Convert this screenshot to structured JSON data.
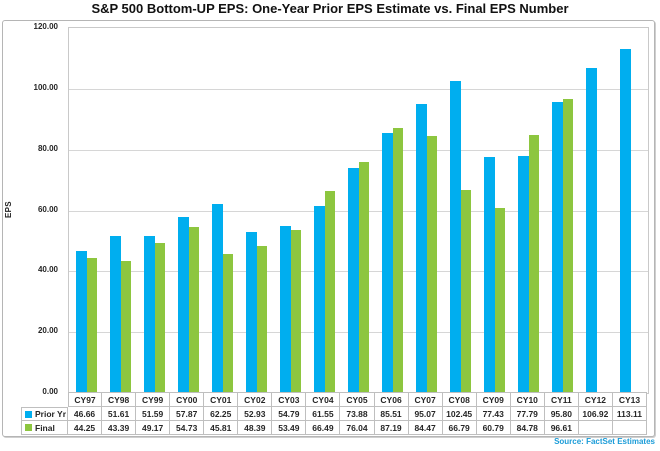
{
  "title": "S&P 500 Bottom-UP EPS: One-Year Prior EPS Estimate vs. Final EPS Number",
  "source_note": "Source: FactSet Estimates",
  "colors": {
    "prior_yr": "#00AEEF",
    "final": "#8DC63F",
    "gridline": "#d6d6d6",
    "table_border": "#bfbfbf",
    "source_text": "#1b9cd8"
  },
  "chart_data": {
    "type": "bar",
    "title": "S&P 500 Bottom-UP EPS: One-Year Prior EPS Estimate vs. Final EPS Number",
    "xlabel": "",
    "ylabel": "EPS",
    "ylim": [
      0,
      120
    ],
    "ytick_step": 20,
    "ytick_labels": [
      "0.00",
      "20.00",
      "40.00",
      "60.00",
      "80.00",
      "100.00",
      "120.00"
    ],
    "grid": true,
    "legend_position": "data-table-left",
    "categories": [
      "CY97",
      "CY98",
      "CY99",
      "CY00",
      "CY01",
      "CY02",
      "CY03",
      "CY04",
      "CY05",
      "CY06",
      "CY07",
      "CY08",
      "CY09",
      "CY10",
      "CY11",
      "CY12",
      "CY13"
    ],
    "series": [
      {
        "name": "Prior Yr",
        "color": "#00AEEF",
        "values": [
          46.66,
          51.61,
          51.59,
          57.87,
          62.25,
          52.93,
          54.79,
          61.55,
          73.88,
          85.51,
          95.07,
          102.45,
          77.43,
          77.79,
          95.8,
          106.92,
          113.11
        ]
      },
      {
        "name": "Final",
        "color": "#8DC63F",
        "values": [
          44.25,
          43.39,
          49.17,
          54.73,
          45.81,
          48.39,
          53.49,
          66.49,
          76.04,
          87.19,
          84.47,
          66.79,
          60.79,
          84.78,
          96.61,
          null,
          null
        ]
      }
    ]
  }
}
